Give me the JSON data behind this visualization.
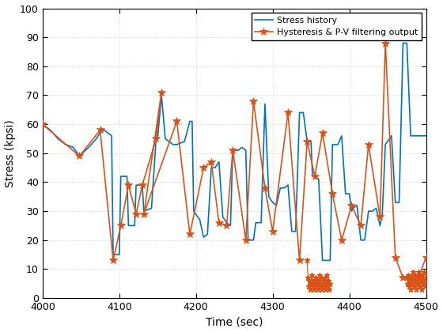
{
  "xlabel": "Time (sec)",
  "ylabel": "Stress (kpsi)",
  "xlim": [
    4000,
    4500
  ],
  "ylim": [
    0,
    100
  ],
  "xticks": [
    4000,
    4100,
    4200,
    4300,
    4400,
    4500
  ],
  "yticks": [
    0,
    10,
    20,
    30,
    40,
    50,
    60,
    70,
    80,
    90,
    100
  ],
  "stress_history_color": "#0072BD",
  "filtered_color": "#D95319",
  "legend_labels": [
    "Stress history",
    "Hysteresis & P-V filtering output"
  ],
  "background_color": "#FFFFFF",
  "sh_t": [
    4000,
    4010,
    4020,
    4030,
    4040,
    4048,
    4052,
    4060,
    4070,
    4075,
    4080,
    4085,
    4090,
    4092,
    4100,
    4102,
    4110,
    4112,
    4120,
    4122,
    4130,
    4132,
    4142,
    4148,
    4150,
    4155,
    4160,
    4165,
    4170,
    4175,
    4185,
    4192,
    4195,
    4197,
    4205,
    4210,
    4215,
    4220,
    4225,
    4230,
    4235,
    4240,
    4245,
    4248,
    4255,
    4260,
    4265,
    4268,
    4275,
    4278,
    4285,
    4290,
    4295,
    4300,
    4305,
    4310,
    4315,
    4320,
    4325,
    4330,
    4335,
    4340,
    4345,
    4350,
    4352,
    4355,
    4360,
    4365,
    4368,
    4375,
    4378,
    4385,
    4390,
    4395,
    4400,
    4403,
    4405,
    4410,
    4415,
    4420,
    4425,
    4430,
    4435,
    4440,
    4443,
    4447,
    4455,
    4460,
    4465,
    4470,
    4475,
    4480,
    4485,
    4490,
    4495,
    4500
  ],
  "sh_v": [
    60,
    58,
    55,
    53,
    52,
    49,
    50,
    52,
    55,
    57,
    58,
    57,
    56,
    15,
    15,
    42,
    42,
    25,
    25,
    39,
    39,
    30,
    31,
    55,
    55,
    70,
    55,
    54,
    53,
    53,
    54,
    61,
    61,
    30,
    27,
    21,
    22,
    45,
    45,
    47,
    28,
    26,
    25,
    51,
    51,
    52,
    51,
    20,
    20,
    26,
    26,
    67,
    35,
    33,
    32,
    38,
    38,
    39,
    23,
    23,
    64,
    64,
    54,
    54,
    42,
    42,
    41,
    13,
    13,
    13,
    53,
    53,
    56,
    36,
    36,
    30,
    31,
    32,
    20,
    20,
    30,
    30,
    31,
    25,
    29,
    53,
    56,
    33,
    33,
    88,
    88,
    56,
    56,
    56,
    56,
    56
  ],
  "filt_t": [
    4000,
    4048,
    4075,
    4092,
    4102,
    4112,
    4122,
    4130,
    4148,
    4155,
    4132,
    4175,
    4192,
    4210,
    4220,
    4230,
    4240,
    4248,
    4265,
    4275,
    4290,
    4300,
    4320,
    4335,
    4345,
    4355,
    4365,
    4378,
    4390,
    4403,
    4415,
    4425,
    4440,
    4447,
    4460,
    4470,
    4480,
    4490,
    4500
  ],
  "filt_v": [
    60,
    49,
    58,
    13,
    25,
    39,
    29,
    39,
    55,
    71,
    29,
    61,
    22,
    45,
    47,
    26,
    25,
    51,
    20,
    68,
    38,
    23,
    64,
    13,
    54,
    42,
    57,
    36,
    20,
    32,
    25,
    53,
    28,
    88,
    14,
    7,
    7,
    7,
    14
  ],
  "noise1_t": [
    4345,
    4346,
    4347,
    4348,
    4349,
    4350,
    4351,
    4352,
    4353,
    4354,
    4355,
    4356,
    4357,
    4358,
    4359,
    4360,
    4361,
    4362,
    4363,
    4364,
    4365,
    4366,
    4367,
    4368,
    4369,
    4370,
    4371,
    4372,
    4373,
    4374,
    4375
  ],
  "noise1_v": [
    13,
    7,
    4,
    6,
    3,
    5,
    8,
    4,
    6,
    3,
    5,
    7,
    4,
    6,
    3,
    5,
    8,
    4,
    7,
    3,
    5,
    6,
    4,
    7,
    3,
    5,
    8,
    4,
    6,
    3,
    5
  ],
  "noise2_t": [
    4475,
    4476,
    4477,
    4478,
    4479,
    4480,
    4481,
    4482,
    4483,
    4484,
    4485,
    4486,
    4487,
    4488,
    4489,
    4490,
    4491,
    4492,
    4493,
    4494,
    4495,
    4496,
    4497,
    4498,
    4499,
    4500
  ],
  "noise2_v": [
    7,
    5,
    8,
    4,
    6,
    3,
    7,
    5,
    9,
    4,
    6,
    8,
    3,
    7,
    5,
    9,
    4,
    6,
    8,
    3,
    7,
    5,
    9,
    4,
    6,
    8
  ]
}
